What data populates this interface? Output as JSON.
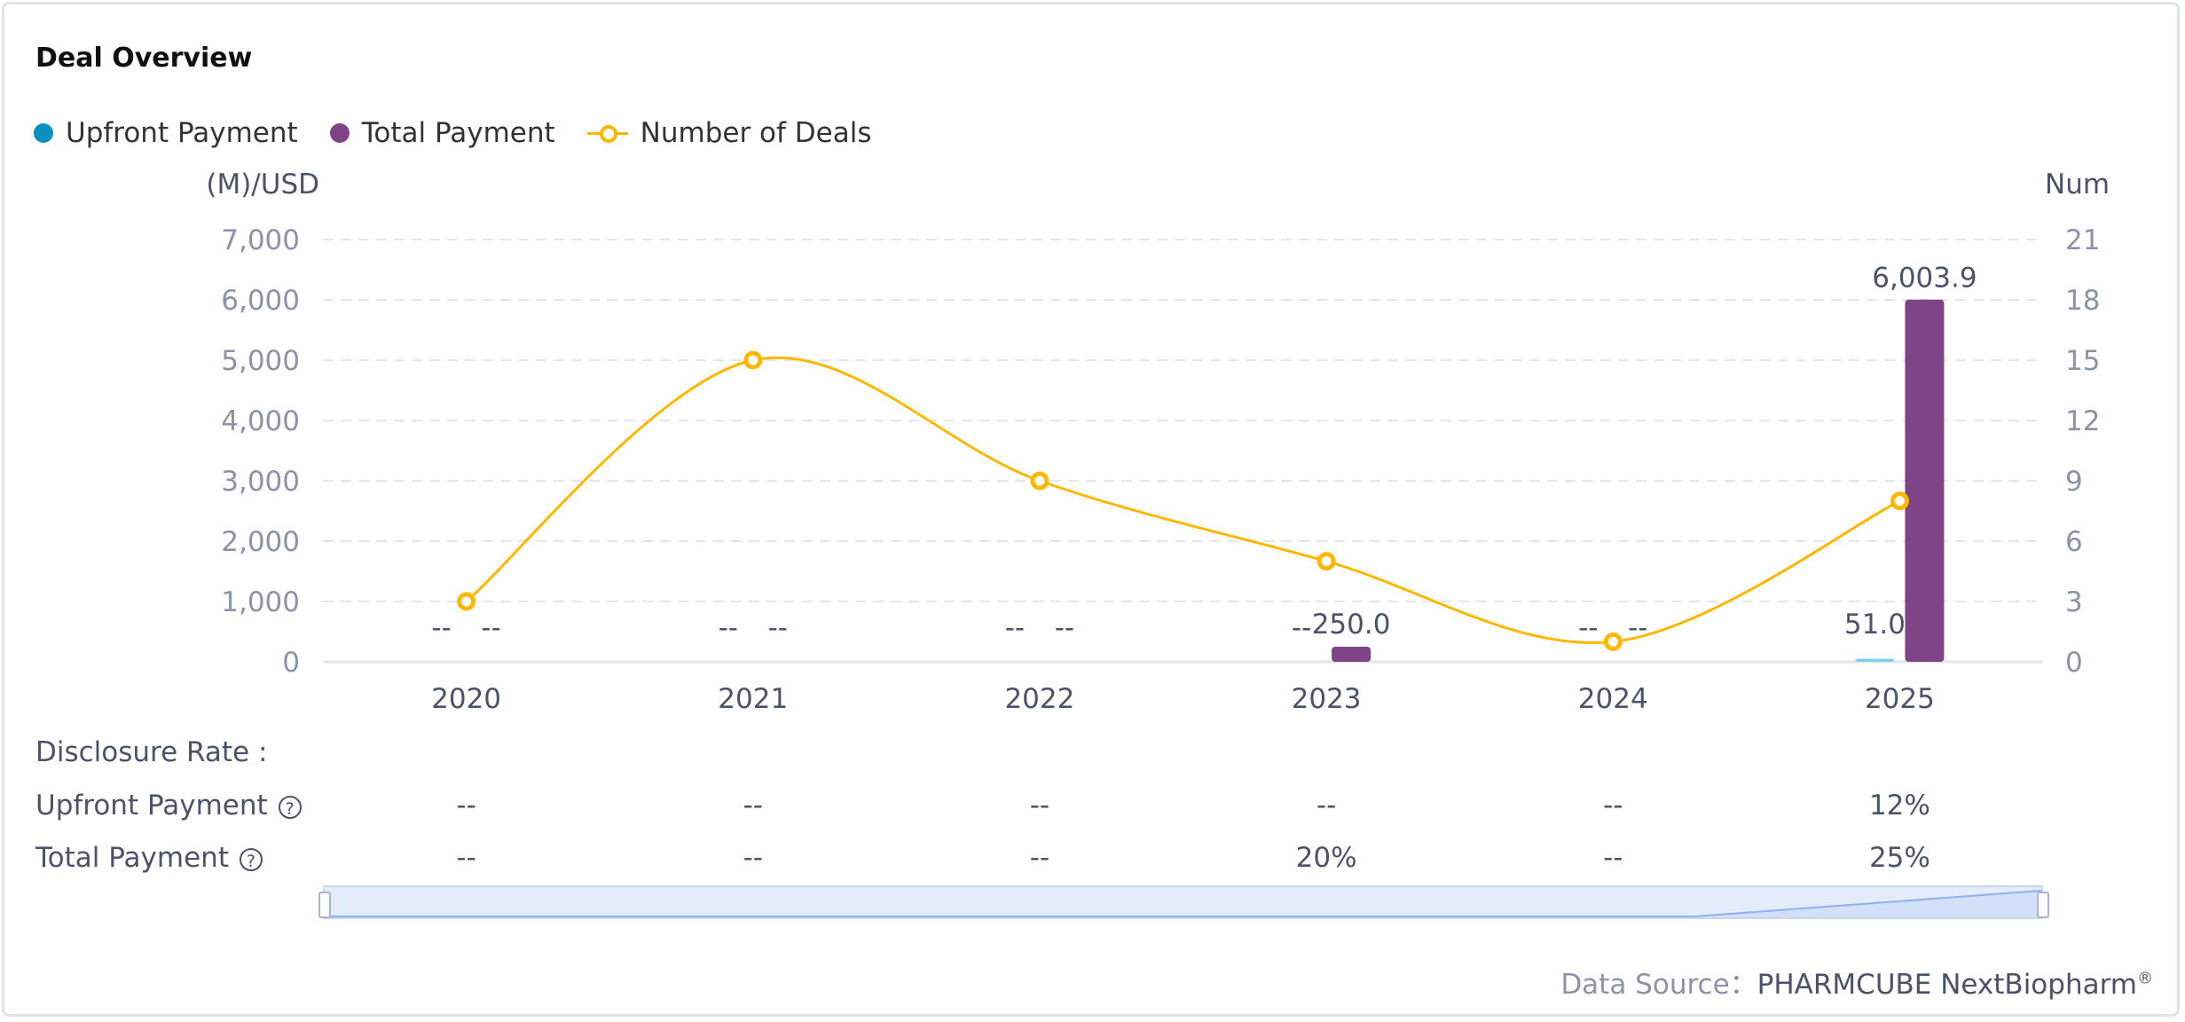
{
  "title": "Deal Overview",
  "legend": [
    {
      "label": "Upfront Payment",
      "color": "#0a8fbf"
    },
    {
      "label": "Total Payment",
      "color": "#7e4485"
    },
    {
      "label": "Number of Deals",
      "color": "#ffb800"
    }
  ],
  "chart_data": {
    "type": "bar+line",
    "categories": [
      "2020",
      "2021",
      "2022",
      "2023",
      "2024",
      "2025"
    ],
    "left_axis": {
      "label": "(M)/USD",
      "range": [
        0,
        7000
      ],
      "ticks": [
        "0",
        "1,000",
        "2,000",
        "3,000",
        "4,000",
        "5,000",
        "6,000",
        "7,000"
      ]
    },
    "right_axis": {
      "label": "Num",
      "range": [
        0,
        21
      ],
      "ticks": [
        "0",
        "3",
        "6",
        "9",
        "12",
        "15",
        "18",
        "21"
      ]
    },
    "series": [
      {
        "name": "Upfront Payment",
        "type": "bar",
        "values": [
          null,
          null,
          null,
          null,
          null,
          51.0
        ],
        "labels": [
          "--",
          "--",
          "--",
          "--",
          "--",
          "51.0"
        ]
      },
      {
        "name": "Total Payment",
        "type": "bar",
        "values": [
          null,
          null,
          null,
          250.0,
          null,
          6003.9
        ],
        "labels": [
          "--",
          "--",
          "--",
          "250.0",
          "--",
          "6,003.9"
        ]
      },
      {
        "name": "Number of Deals",
        "type": "line",
        "axis": "right",
        "values": [
          3,
          15,
          9,
          5,
          1,
          8
        ]
      }
    ],
    "grid": true
  },
  "disclosure": {
    "heading": "Disclosure Rate :",
    "rows": [
      {
        "label": "Upfront Payment",
        "values": [
          "--",
          "--",
          "--",
          "--",
          "--",
          "12%"
        ]
      },
      {
        "label": "Total Payment",
        "values": [
          "--",
          "--",
          "--",
          "20%",
          "--",
          "25%"
        ]
      }
    ],
    "help_icon": "?"
  },
  "source": {
    "prefix": "Data Source：",
    "name": "PHARMCUBE NextBiopharm",
    "mark": "®"
  }
}
